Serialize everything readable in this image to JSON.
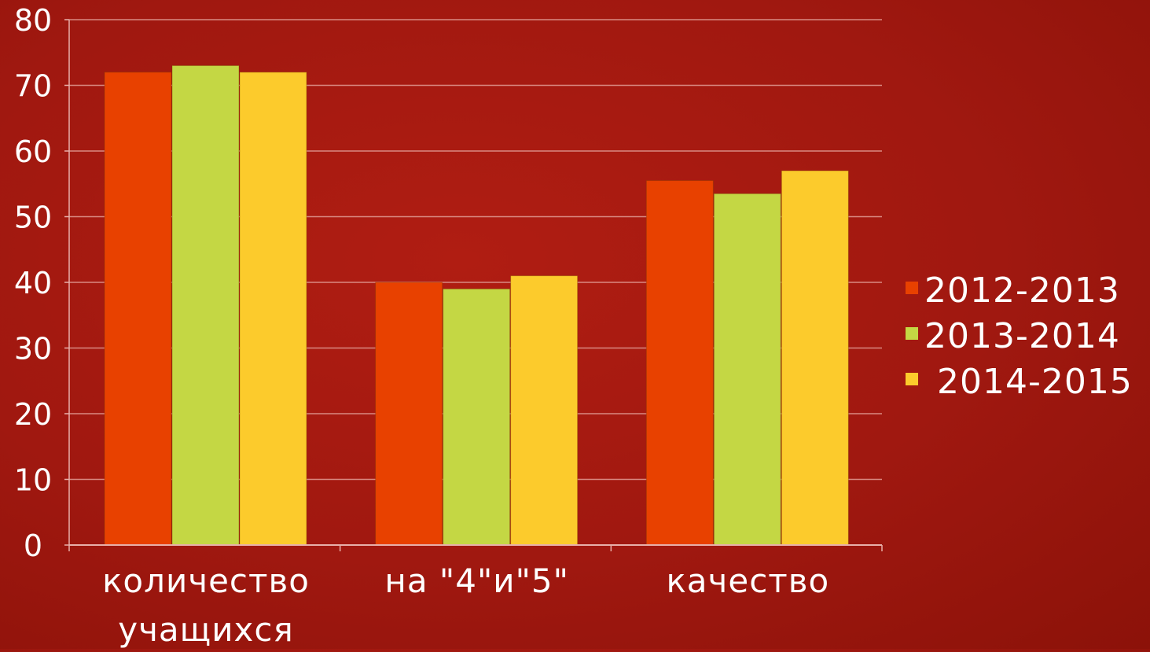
{
  "chart_data": {
    "type": "bar",
    "title": "",
    "xlabel": "",
    "ylabel": "",
    "ylim": [
      0,
      80
    ],
    "yticks": [
      0,
      10,
      20,
      30,
      40,
      50,
      60,
      70,
      80
    ],
    "grid": true,
    "legend_position": "right",
    "categories": [
      [
        "количество",
        "учащихся"
      ],
      [
        "на \"4\"и\"5\""
      ],
      [
        "качество"
      ]
    ],
    "series": [
      {
        "name": "2012-2013",
        "color": "#e84100",
        "values": [
          72,
          40,
          55.5
        ]
      },
      {
        "name": "2013-2014",
        "color": "#c4d744",
        "values": [
          73,
          39,
          53.5
        ]
      },
      {
        "name": "2014-2015",
        "color": "#fccb2c",
        "values": [
          72,
          41,
          57
        ]
      }
    ]
  },
  "colors": {
    "background": "#a51a10",
    "gridline": "#d98a82",
    "axis": "#e8b0aa",
    "text": "#ffffff"
  }
}
